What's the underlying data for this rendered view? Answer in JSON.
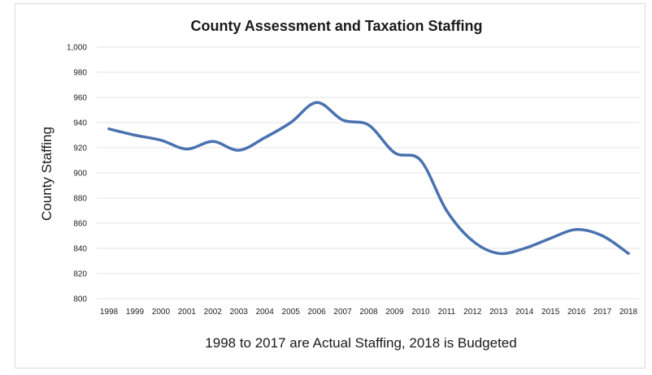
{
  "chart_data": {
    "type": "line",
    "title": "County Assessment and Taxation Staffing",
    "xlabel": "1998 to 2017 are Actual Staffing, 2018 is Budgeted",
    "ylabel": "County Staffing",
    "ylim": [
      800,
      1000
    ],
    "yticks": [
      "800",
      "820",
      "840",
      "860",
      "880",
      "900",
      "920",
      "940",
      "960",
      "980",
      "1,000"
    ],
    "grid": true,
    "legend": "none",
    "x": [
      "1998",
      "1999",
      "2000",
      "2001",
      "2002",
      "2003",
      "2004",
      "2005",
      "2006",
      "2007",
      "2008",
      "2009",
      "2010",
      "2011",
      "2012",
      "2013",
      "2014",
      "2015",
      "2016",
      "2017",
      "2018"
    ],
    "series": [
      {
        "values": [
          935,
          930,
          926,
          919,
          925,
          918,
          928,
          940,
          956,
          942,
          938,
          916,
          910,
          870,
          846,
          836,
          840,
          848,
          855,
          850,
          836
        ],
        "color": "#4a72b0"
      }
    ]
  }
}
